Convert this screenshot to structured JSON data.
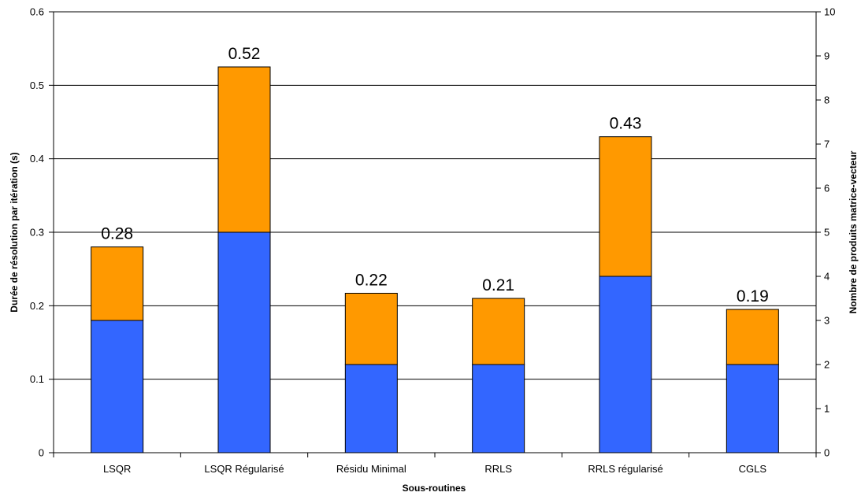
{
  "chart_data": {
    "type": "bar",
    "stacked": true,
    "categories": [
      "LSQR",
      "LSQR Régularisé",
      "Résidu Minimal",
      "RRLS",
      "RRLS régularisé",
      "CGLS"
    ],
    "series": [
      {
        "values": [
          0.18,
          0.3,
          0.12,
          0.12,
          0.24,
          0.12
        ],
        "color": "#3366ff"
      },
      {
        "values": [
          0.1,
          0.225,
          0.097,
          0.09,
          0.19,
          0.075
        ],
        "color": "#ff9900"
      }
    ],
    "totals_labels": [
      "0.28",
      "0.52",
      "0.22",
      "0.21",
      "0.43",
      "0.19"
    ],
    "xlabel": "Sous-routines",
    "ylabel": "Durée de résolution par itération (s)",
    "y2label": "Nombre de produits matrice-vecteur",
    "ylim": [
      0,
      0.6
    ],
    "yticks": [
      "0",
      "0.1",
      "0.2",
      "0.3",
      "0.4",
      "0.5",
      "0.6"
    ],
    "y2lim": [
      0,
      10
    ],
    "y2ticks": [
      "0",
      "1",
      "2",
      "3",
      "4",
      "5",
      "6",
      "7",
      "8",
      "9",
      "10"
    ],
    "grid": true,
    "legend": "none"
  }
}
